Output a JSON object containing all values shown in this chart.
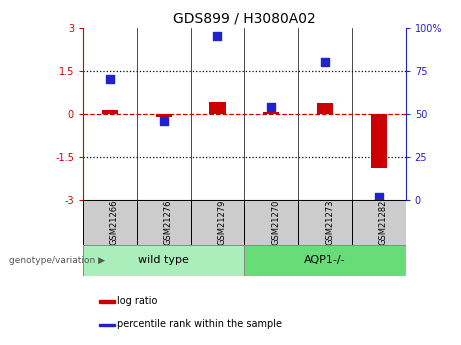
{
  "title": "GDS899 / H3080A02",
  "samples": [
    "GSM21266",
    "GSM21276",
    "GSM21279",
    "GSM21270",
    "GSM21273",
    "GSM21282"
  ],
  "log_ratio": [
    0.15,
    -0.1,
    0.42,
    0.08,
    0.38,
    -1.9
  ],
  "percentile_rank": [
    70,
    46,
    95,
    54,
    80,
    2
  ],
  "ylim_left": [
    -3,
    3
  ],
  "ylim_right": [
    0,
    100
  ],
  "yticks_left": [
    -3,
    -1.5,
    0,
    1.5,
    3
  ],
  "yticks_right": [
    0,
    25,
    50,
    75,
    100
  ],
  "yticklabels_left": [
    "-3",
    "-1.5",
    "0",
    "1.5",
    "3"
  ],
  "yticklabels_right": [
    "0",
    "25",
    "50",
    "75",
    "100%"
  ],
  "hlines_dotted": [
    1.5,
    -1.5
  ],
  "hline_dashed": 0,
  "group1_label": "wild type",
  "group2_label": "AQP1-/-",
  "group1_indices": [
    0,
    1,
    2
  ],
  "group2_indices": [
    3,
    4,
    5
  ],
  "genotype_label": "genotype/variation",
  "legend_items": [
    "log ratio",
    "percentile rank within the sample"
  ],
  "bar_color": "#cc0000",
  "dot_color": "#2222cc",
  "group1_color": "#aaeebb",
  "group2_color": "#66dd77",
  "sample_box_color": "#cccccc",
  "bar_width": 0.3,
  "dot_size": 40,
  "bg_color": "#ffffff",
  "red_line_color": "#cc0000",
  "black_line_color": "#000000",
  "title_fontsize": 10,
  "tick_fontsize": 7,
  "label_fontsize": 7
}
